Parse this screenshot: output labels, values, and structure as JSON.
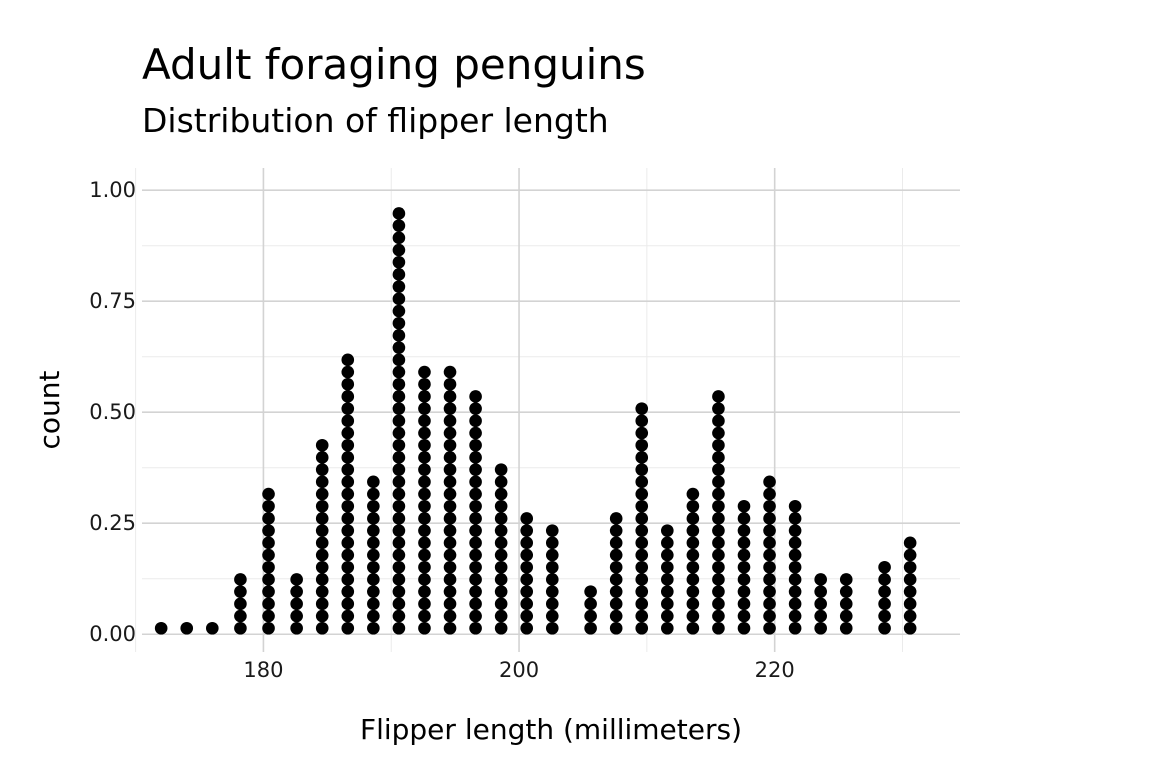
{
  "chart_data": {
    "type": "dotplot",
    "title": "Adult foraging penguins",
    "subtitle": "Distribution of flipper length",
    "xlabel": "Flipper length (millimeters)",
    "ylabel": "count",
    "xlim": [
      170.5,
      234.5
    ],
    "ylim": [
      -0.04,
      1.05
    ],
    "x_ticks": [
      180,
      200,
      220
    ],
    "x_tick_labels": [
      "180",
      "200",
      "220"
    ],
    "y_ticks": [
      0,
      0.25,
      0.5,
      0.75,
      1.0
    ],
    "y_tick_labels": [
      "0.00",
      "0.25",
      "0.50",
      "0.75",
      "1.00"
    ],
    "grid": true,
    "dot_color": "#000000",
    "stacks": [
      {
        "x": 172,
        "count": 1
      },
      {
        "x": 174,
        "count": 1
      },
      {
        "x": 176,
        "count": 1
      },
      {
        "x": 178.2,
        "count": 5
      },
      {
        "x": 180.4,
        "count": 12
      },
      {
        "x": 182.6,
        "count": 5
      },
      {
        "x": 184.6,
        "count": 16
      },
      {
        "x": 186.6,
        "count": 23
      },
      {
        "x": 188.6,
        "count": 13
      },
      {
        "x": 190.6,
        "count": 35
      },
      {
        "x": 192.6,
        "count": 22
      },
      {
        "x": 194.6,
        "count": 22
      },
      {
        "x": 196.6,
        "count": 20
      },
      {
        "x": 198.6,
        "count": 14
      },
      {
        "x": 200.6,
        "count": 10
      },
      {
        "x": 202.6,
        "count": 9
      },
      {
        "x": 205.6,
        "count": 4
      },
      {
        "x": 207.6,
        "count": 10
      },
      {
        "x": 209.6,
        "count": 19
      },
      {
        "x": 211.6,
        "count": 9
      },
      {
        "x": 213.6,
        "count": 12
      },
      {
        "x": 215.6,
        "count": 20
      },
      {
        "x": 217.6,
        "count": 11
      },
      {
        "x": 219.6,
        "count": 13
      },
      {
        "x": 221.6,
        "count": 11
      },
      {
        "x": 223.6,
        "count": 5
      },
      {
        "x": 225.6,
        "count": 5
      },
      {
        "x": 228.6,
        "count": 6
      },
      {
        "x": 230.6,
        "count": 8
      }
    ]
  }
}
